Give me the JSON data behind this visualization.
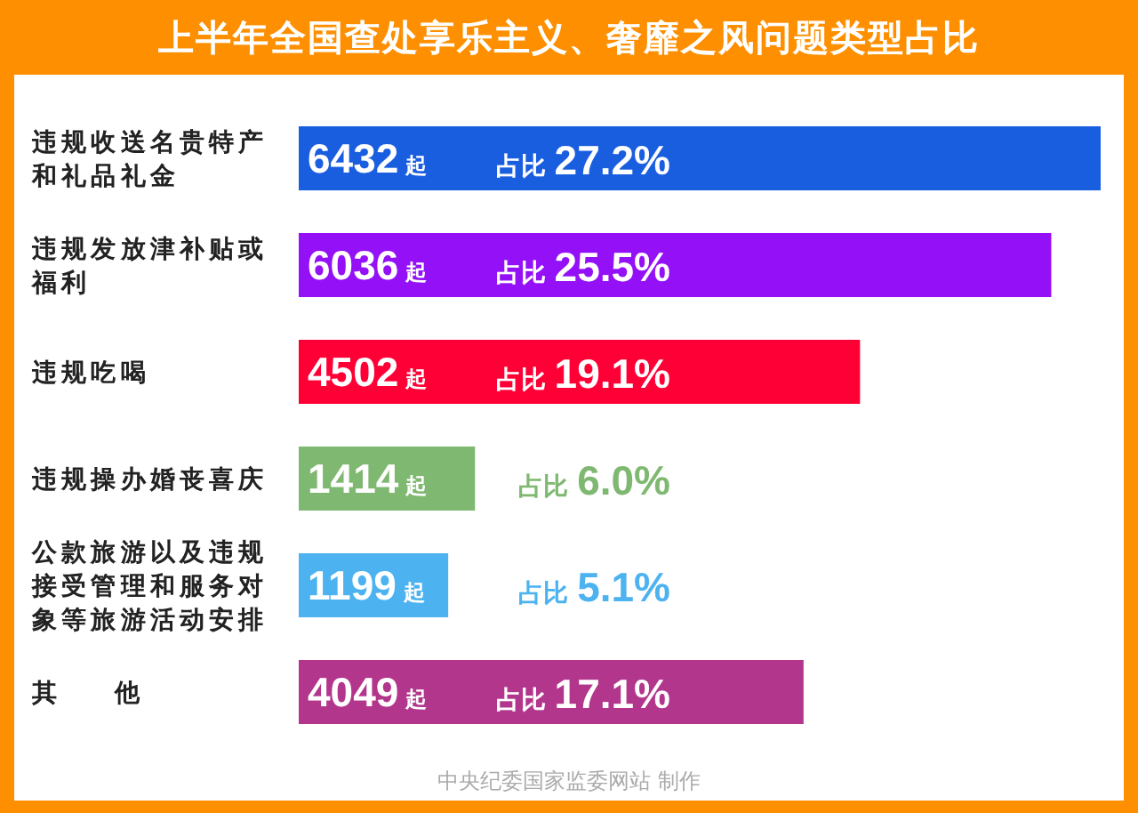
{
  "chart_data": {
    "type": "bar",
    "orientation": "horizontal",
    "title": "上半年全国查处享乐主义、奢靡之风问题类型占比",
    "categories": [
      "违规收送名贵特产和礼品礼金",
      "违规发放津补贴或福利",
      "违规吃喝",
      "违规操办婚丧喜庆",
      "公款旅游以及违规接受管理和服务对象等旅游活动安排",
      "其    他"
    ],
    "values": [
      6432,
      6036,
      4502,
      1414,
      1199,
      4049
    ],
    "colors": [
      "#1a5ee0",
      "#9410f7",
      "#ff0036",
      "#7fb870",
      "#4db3f0",
      "#b2368c"
    ],
    "value_labels": [
      "6432 起",
      "6036 起",
      "4502 起",
      "1414 起",
      "1199 起",
      "4049 起"
    ],
    "annotations": [
      "占比 27.2%",
      "占比 25.5%",
      "占比 19.1%",
      "占比 6.0%",
      "占比 5.1%",
      "占比 17.1%",
      "中央纪委国家监委网站 制作"
    ]
  }
}
